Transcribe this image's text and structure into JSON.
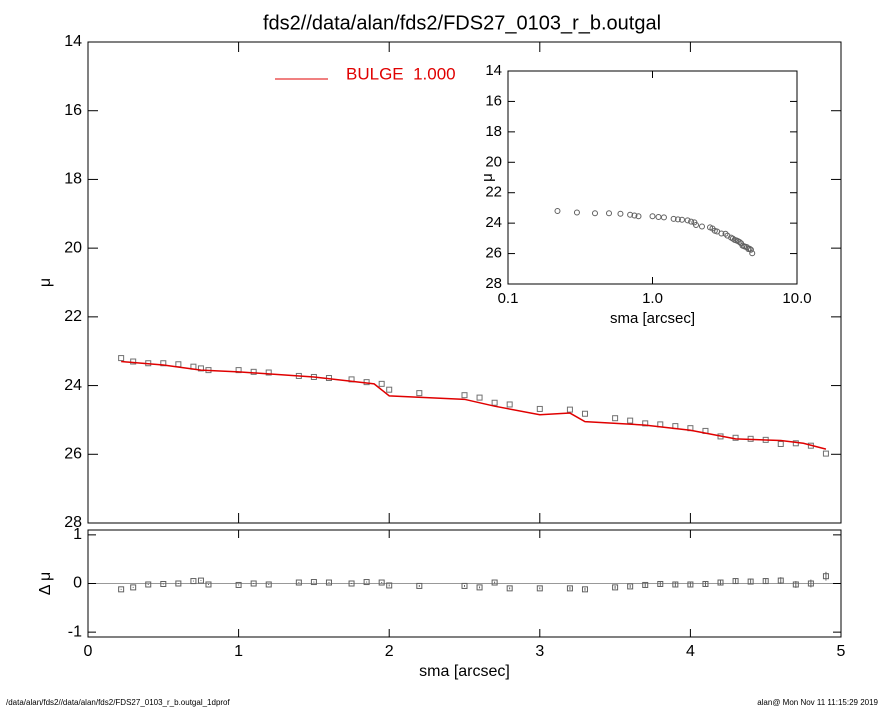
{
  "footer_left": "/data/alan/fds2//data/alan/fds2/FDS27_0103_r_b.outgal_1dprof",
  "footer_right": "alan@  Mon Nov 11 11:15:29 2019",
  "chart_data": [
    {
      "type": "scatter",
      "title": "fds2//data/alan/fds2/FDS27_0103_r_b.outgal",
      "ylabel": "μ",
      "xlim": [
        0,
        5
      ],
      "xticks": [
        0,
        1,
        2,
        3,
        4,
        5
      ],
      "ylim": [
        14,
        28
      ],
      "yticks": [
        14,
        16,
        18,
        20,
        22,
        24,
        26,
        28
      ],
      "invert_y": true,
      "legend": "top-left",
      "series": [
        {
          "color": "#707070",
          "marker": "square",
          "x": [
            0.22,
            0.3,
            0.4,
            0.5,
            0.6,
            0.7,
            0.75,
            0.8,
            1.0,
            1.1,
            1.2,
            1.4,
            1.5,
            1.6,
            1.75,
            1.85,
            1.95,
            2.0,
            2.2,
            2.5,
            2.6,
            2.7,
            2.8,
            3.0,
            3.2,
            3.3,
            3.5,
            3.6,
            3.7,
            3.8,
            3.9,
            4.0,
            4.1,
            4.2,
            4.3,
            4.4,
            4.5,
            4.6,
            4.7,
            4.8,
            4.9
          ],
          "values": [
            23.2,
            23.3,
            23.35,
            23.35,
            23.38,
            23.45,
            23.5,
            23.55,
            23.55,
            23.6,
            23.62,
            23.72,
            23.75,
            23.78,
            23.82,
            23.9,
            23.95,
            24.12,
            24.22,
            24.28,
            24.35,
            24.5,
            24.55,
            24.68,
            24.7,
            24.82,
            24.95,
            25.02,
            25.1,
            25.13,
            25.18,
            25.24,
            25.32,
            25.48,
            25.52,
            25.55,
            25.58,
            25.7,
            25.68,
            25.75,
            25.98
          ]
        },
        {
          "name": "BULGE  1.000",
          "color": "#e00000",
          "marker": "line",
          "x": [
            0.22,
            0.5,
            0.75,
            1.0,
            1.5,
            1.9,
            2.0,
            2.5,
            2.7,
            3.0,
            3.2,
            3.3,
            3.7,
            4.0,
            4.3,
            4.6,
            4.75,
            4.9
          ],
          "values": [
            23.3,
            23.4,
            23.55,
            23.6,
            23.75,
            23.95,
            24.3,
            24.4,
            24.6,
            24.85,
            24.8,
            25.05,
            25.15,
            25.3,
            25.55,
            25.6,
            25.68,
            25.85
          ]
        }
      ]
    },
    {
      "type": "scatter",
      "ylabel": "Δ μ",
      "xlabel": "sma [arcsec]",
      "xlim": [
        0,
        5
      ],
      "xticks": [
        0,
        1,
        2,
        3,
        4,
        5
      ],
      "ylim": [
        -1.1,
        1.1
      ],
      "yticks": [
        -1,
        0,
        1
      ],
      "reference_line": 0,
      "series": [
        {
          "color": "#606060",
          "marker": "square",
          "x": [
            0.22,
            0.3,
            0.4,
            0.5,
            0.6,
            0.7,
            0.75,
            0.8,
            1.0,
            1.1,
            1.2,
            1.4,
            1.5,
            1.6,
            1.75,
            1.85,
            1.95,
            2.0,
            2.2,
            2.5,
            2.6,
            2.7,
            2.8,
            3.0,
            3.2,
            3.3,
            3.5,
            3.6,
            3.7,
            3.8,
            3.9,
            4.0,
            4.1,
            4.2,
            4.3,
            4.4,
            4.5,
            4.6,
            4.7,
            4.8,
            4.9
          ],
          "values": [
            -0.12,
            -0.08,
            -0.02,
            -0.01,
            0.0,
            0.05,
            0.06,
            -0.02,
            -0.03,
            0.0,
            -0.02,
            0.02,
            0.03,
            0.02,
            0.0,
            0.03,
            0.02,
            -0.04,
            -0.05,
            -0.05,
            -0.08,
            0.02,
            -0.1,
            -0.1,
            -0.1,
            -0.12,
            -0.08,
            -0.06,
            -0.03,
            -0.01,
            -0.02,
            -0.02,
            -0.01,
            0.02,
            0.05,
            0.04,
            0.05,
            0.06,
            -0.02,
            0.0,
            0.15
          ],
          "errors": [
            0.01,
            0.01,
            0.01,
            0.01,
            0.01,
            0.01,
            0.01,
            0.01,
            0.01,
            0.01,
            0.01,
            0.01,
            0.01,
            0.01,
            0.01,
            0.01,
            0.01,
            0.02,
            0.02,
            0.02,
            0.02,
            0.02,
            0.02,
            0.02,
            0.03,
            0.03,
            0.03,
            0.03,
            0.04,
            0.04,
            0.04,
            0.04,
            0.05,
            0.05,
            0.06,
            0.06,
            0.06,
            0.07,
            0.07,
            0.08,
            0.09
          ]
        }
      ]
    },
    {
      "type": "scatter",
      "ylabel": "μ",
      "xlabel": "sma [arcsec]",
      "log_x": true,
      "xlim": [
        0.1,
        10
      ],
      "xticks": [
        {
          "value": 0.1,
          "label": "0.1"
        },
        {
          "value": 1,
          "label": "1.0"
        },
        {
          "value": 10,
          "label": "10.0"
        }
      ],
      "ylim": [
        14,
        28
      ],
      "yticks": [
        14,
        16,
        18,
        20,
        22,
        24,
        26,
        28
      ],
      "invert_y": true,
      "series": [
        {
          "color": "#606060",
          "marker": "circle",
          "x": [
            0.22,
            0.3,
            0.4,
            0.5,
            0.6,
            0.7,
            0.75,
            0.8,
            1.0,
            1.1,
            1.2,
            1.4,
            1.5,
            1.6,
            1.75,
            1.85,
            1.95,
            2.0,
            2.2,
            2.5,
            2.6,
            2.7,
            2.8,
            3.0,
            3.2,
            3.3,
            3.5,
            3.6,
            3.7,
            3.8,
            3.9,
            4.0,
            4.1,
            4.2,
            4.3,
            4.4,
            4.5,
            4.6,
            4.7,
            4.8,
            4.9
          ],
          "values": [
            23.2,
            23.3,
            23.35,
            23.35,
            23.38,
            23.45,
            23.5,
            23.55,
            23.55,
            23.6,
            23.62,
            23.72,
            23.75,
            23.78,
            23.82,
            23.9,
            23.95,
            24.12,
            24.22,
            24.28,
            24.35,
            24.5,
            24.55,
            24.68,
            24.7,
            24.82,
            24.95,
            25.02,
            25.1,
            25.13,
            25.18,
            25.24,
            25.32,
            25.48,
            25.52,
            25.55,
            25.58,
            25.7,
            25.68,
            25.75,
            25.98
          ]
        }
      ]
    }
  ]
}
